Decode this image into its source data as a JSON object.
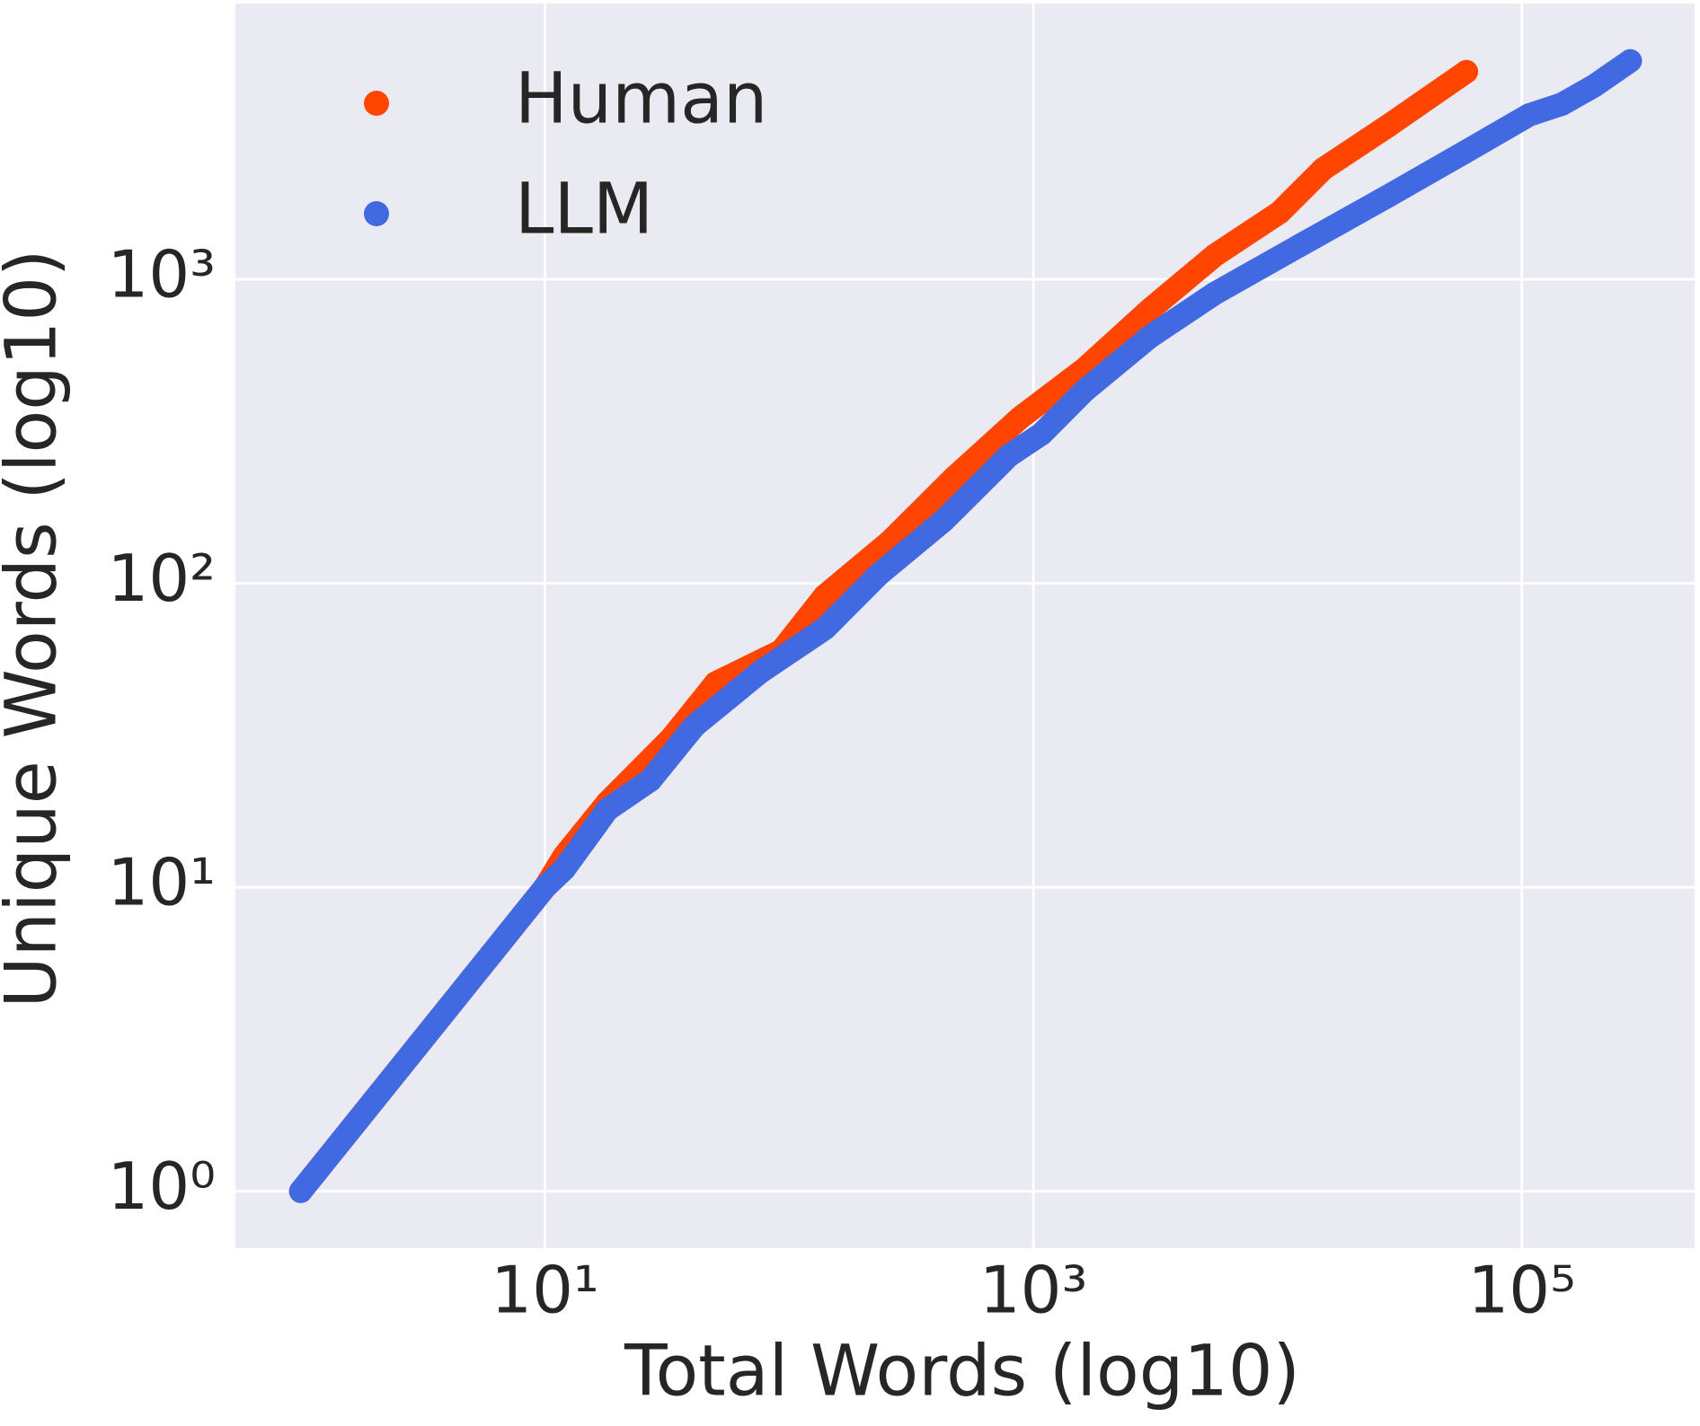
{
  "chart_data": {
    "type": "scatter",
    "xlabel": "Total Words (log10)",
    "ylabel": "Unique Words (log10)",
    "xscale": "log",
    "yscale": "log",
    "grid": true,
    "legend": "upper left",
    "xlim": [
      0.54,
      510000
    ],
    "ylim": [
      0.65,
      8070
    ],
    "xticks": [
      {
        "value": 10,
        "label": "10¹"
      },
      {
        "value": 1000,
        "label": "10³"
      },
      {
        "value": 100000,
        "label": "10⁵"
      }
    ],
    "yticks": [
      {
        "value": 1,
        "label": "10⁰"
      },
      {
        "value": 10,
        "label": "10¹"
      },
      {
        "value": 100,
        "label": "10²"
      },
      {
        "value": 1000,
        "label": "10³"
      }
    ],
    "series": [
      {
        "name": "Human",
        "color": "#ff4500",
        "x": [
          1,
          2,
          3,
          4,
          5,
          6,
          7,
          8,
          9,
          10,
          12,
          18,
          33,
          50,
          93,
          140,
          258,
          475,
          881,
          1620,
          3000,
          5540,
          10200,
          15400,
          28400,
          59300
        ],
        "values": [
          1,
          2,
          3,
          4,
          5,
          6,
          7,
          8,
          9,
          10,
          12.7,
          19,
          31,
          47,
          60,
          91,
          137,
          223,
          350,
          507,
          795,
          1200,
          1660,
          2310,
          3200,
          4820
        ]
      },
      {
        "name": "LLM",
        "color": "#4169e1",
        "x": [
          1,
          2,
          3,
          4,
          5,
          6,
          7,
          8,
          9,
          10,
          12,
          18,
          27,
          41,
          76,
          140,
          233,
          430,
          794,
          1080,
          1620,
          3000,
          5540,
          12500,
          28400,
          58000,
          107000,
          146000,
          198000,
          278000
        ],
        "values": [
          1,
          2,
          3,
          4,
          5,
          6,
          7,
          8,
          9,
          10,
          11.5,
          18,
          22.5,
          34,
          51,
          71,
          107,
          161,
          263,
          310,
          430,
          647,
          899,
          1300,
          1880,
          2610,
          3470,
          3770,
          4330,
          5230
        ]
      }
    ]
  }
}
